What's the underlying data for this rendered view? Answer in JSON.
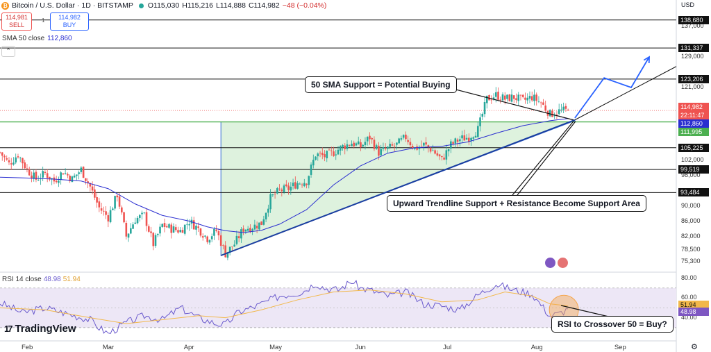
{
  "header": {
    "symbol": "Bitcoin / U.S. Dollar · 1D · BITSTAMP",
    "open": "O115,030",
    "high": "H115,216",
    "low": "L114,888",
    "close": "C114,982",
    "change": "−48 (−0.04%)",
    "logo_glyph": "₿"
  },
  "trade": {
    "sell_price": "114,981",
    "sell_label": "SELL",
    "spread": "1",
    "buy_price": "114,982",
    "buy_label": "BUY"
  },
  "sma_label": {
    "name": "SMA 50 close",
    "value": "112,860"
  },
  "rsi_label": {
    "name": "RSI 14 close",
    "rsi": "48.98",
    "ma": "51.94"
  },
  "brand": {
    "name": "TradingView",
    "mark": "17"
  },
  "currency": "USD",
  "annotations": {
    "sma": "50 SMA Support = Potential Buying",
    "trend": "Upward Trendline Support + Resistance Become Support Area",
    "rsi": "RSI to Crossover 50 = Buy?"
  },
  "price_axis": {
    "ticks": [
      "137,000",
      "129,000",
      "121,000",
      "102,000",
      "98,000",
      "90,000",
      "86,000",
      "82,000",
      "78,500",
      "75,300"
    ],
    "tags": [
      {
        "text": "138,680",
        "style": "black"
      },
      {
        "text": "131,337",
        "style": "black"
      },
      {
        "text": "123,206",
        "style": "black"
      },
      {
        "text": "114,982",
        "style": "red"
      },
      {
        "text": "22:11:47",
        "style": "red"
      },
      {
        "text": "112,860",
        "style": "blue"
      },
      {
        "text": "111,995",
        "style": "green"
      },
      {
        "text": "105,225",
        "style": "black"
      },
      {
        "text": "99,519",
        "style": "black"
      },
      {
        "text": "93,484",
        "style": "black"
      }
    ]
  },
  "rsi_axis": {
    "ticks": [
      "80.00",
      "60.00",
      "40.00"
    ],
    "tags": [
      {
        "text": "51.94",
        "style": "yellow"
      },
      {
        "text": "48.98",
        "style": "purple"
      }
    ]
  },
  "time_axis": [
    "Feb",
    "Mar",
    "Apr",
    "May",
    "Jun",
    "Jul",
    "Aug",
    "Sep"
  ],
  "colors": {
    "up": "#26a69a",
    "down": "#ef5350",
    "sma": "#2a2ed0",
    "trendline": "#1a3ea0",
    "arrow": "#2962ff",
    "triangle_fill": "#d8f0d8",
    "rsi": "#6a5acd",
    "rsi_ma": "#f2b84a",
    "rsi_band": "#ede7f6",
    "highlight": "#f5a64d"
  },
  "chart_data": {
    "type": "candlestick",
    "symbol": "BTCUSD",
    "interval": "1D",
    "price_ylim": [
      73000,
      141000
    ],
    "horizontal_levels": [
      138680,
      131337,
      123206,
      105225,
      99519,
      93484
    ],
    "green_level": 111995,
    "current_price": 114982,
    "sma50_last": 112860,
    "price_path": [
      [
        0,
        104000
      ],
      [
        4,
        101000
      ],
      [
        8,
        103500
      ],
      [
        12,
        99500
      ],
      [
        16,
        97000
      ],
      [
        20,
        98500
      ],
      [
        24,
        96500
      ],
      [
        28,
        99000
      ],
      [
        32,
        97000
      ],
      [
        36,
        99500
      ],
      [
        40,
        95000
      ],
      [
        44,
        89500
      ],
      [
        48,
        87000
      ],
      [
        52,
        93000
      ],
      [
        56,
        82000
      ],
      [
        60,
        86500
      ],
      [
        64,
        87500
      ],
      [
        68,
        80000
      ],
      [
        72,
        85000
      ],
      [
        76,
        84000
      ],
      [
        80,
        83500
      ],
      [
        84,
        86000
      ],
      [
        88,
        84000
      ],
      [
        92,
        81500
      ],
      [
        96,
        83500
      ],
      [
        100,
        77500
      ],
      [
        104,
        80000
      ],
      [
        108,
        84000
      ],
      [
        112,
        84500
      ],
      [
        116,
        85500
      ],
      [
        120,
        92000
      ],
      [
        124,
        94000
      ],
      [
        128,
        94500
      ],
      [
        132,
        96000
      ],
      [
        136,
        96500
      ],
      [
        140,
        103500
      ],
      [
        144,
        103000
      ],
      [
        148,
        104000
      ],
      [
        152,
        105500
      ],
      [
        156,
        106500
      ],
      [
        160,
        105500
      ],
      [
        164,
        108000
      ],
      [
        168,
        104000
      ],
      [
        172,
        105000
      ],
      [
        176,
        106000
      ],
      [
        180,
        108000
      ],
      [
        184,
        105000
      ],
      [
        188,
        106000
      ],
      [
        192,
        104500
      ],
      [
        196,
        102000
      ],
      [
        200,
        106000
      ],
      [
        204,
        107500
      ],
      [
        208,
        108000
      ],
      [
        212,
        110000
      ],
      [
        216,
        118000
      ],
      [
        220,
        119000
      ],
      [
        224,
        118000
      ],
      [
        228,
        118500
      ],
      [
        232,
        117500
      ],
      [
        236,
        118500
      ],
      [
        240,
        117000
      ],
      [
        244,
        114000
      ],
      [
        248,
        114800
      ],
      [
        252,
        114982
      ]
    ],
    "sma50_path": [
      [
        0,
        97500
      ],
      [
        12,
        97300
      ],
      [
        24,
        97000
      ],
      [
        36,
        96500
      ],
      [
        48,
        94500
      ],
      [
        60,
        90500
      ],
      [
        72,
        87500
      ],
      [
        84,
        86000
      ],
      [
        92,
        84500
      ],
      [
        100,
        83500
      ],
      [
        108,
        83000
      ],
      [
        116,
        83600
      ],
      [
        124,
        85200
      ],
      [
        136,
        89000
      ],
      [
        148,
        95500
      ],
      [
        160,
        100500
      ],
      [
        172,
        103800
      ],
      [
        184,
        105200
      ],
      [
        196,
        105600
      ],
      [
        208,
        106800
      ],
      [
        220,
        109000
      ],
      [
        232,
        111000
      ],
      [
        244,
        112300
      ],
      [
        252,
        112860
      ]
    ],
    "trendline": {
      "start": [
        98,
        77000
      ],
      "end": [
        255,
        112500
      ],
      "extend_to": [
        300,
        126500
      ]
    },
    "resistance_line_from": 98,
    "projection": [
      [
        255,
        113000
      ],
      [
        268,
        123500
      ],
      [
        280,
        121000
      ],
      [
        288,
        129000
      ]
    ],
    "triangle": [
      [
        98,
        77000
      ],
      [
        98,
        111995
      ],
      [
        255,
        111995
      ],
      [
        255,
        112300
      ]
    ],
    "rsi": {
      "ylim": [
        18,
        86
      ],
      "band": [
        30,
        70
      ],
      "mid": 50,
      "rsi_path": [
        [
          0,
          55
        ],
        [
          10,
          45
        ],
        [
          20,
          50
        ],
        [
          30,
          44
        ],
        [
          40,
          38
        ],
        [
          44,
          30
        ],
        [
          48,
          24
        ],
        [
          56,
          35
        ],
        [
          64,
          42
        ],
        [
          72,
          38
        ],
        [
          80,
          50
        ],
        [
          88,
          40
        ],
        [
          96,
          34
        ],
        [
          100,
          33
        ],
        [
          106,
          46
        ],
        [
          114,
          52
        ],
        [
          124,
          62
        ],
        [
          134,
          66
        ],
        [
          140,
          75
        ],
        [
          144,
          70
        ],
        [
          150,
          68
        ],
        [
          156,
          77
        ],
        [
          160,
          70
        ],
        [
          164,
          68
        ],
        [
          172,
          62
        ],
        [
          180,
          66
        ],
        [
          188,
          54
        ],
        [
          196,
          52
        ],
        [
          204,
          48
        ],
        [
          212,
          63
        ],
        [
          220,
          74
        ],
        [
          228,
          68
        ],
        [
          236,
          64
        ],
        [
          244,
          42
        ],
        [
          248,
          44
        ],
        [
          252,
          48.98
        ]
      ],
      "ma_path": [
        [
          0,
          50
        ],
        [
          20,
          48
        ],
        [
          40,
          40
        ],
        [
          56,
          34
        ],
        [
          72,
          38
        ],
        [
          88,
          42
        ],
        [
          100,
          40
        ],
        [
          116,
          48
        ],
        [
          132,
          58
        ],
        [
          148,
          66
        ],
        [
          164,
          68
        ],
        [
          180,
          64
        ],
        [
          196,
          56
        ],
        [
          212,
          58
        ],
        [
          224,
          66
        ],
        [
          236,
          62
        ],
        [
          244,
          54
        ],
        [
          252,
          51.94
        ]
      ],
      "last_rsi": 48.98,
      "last_ma": 51.94
    },
    "x_labels": [
      "Feb",
      "Mar",
      "Apr",
      "May",
      "Jun",
      "Jul",
      "Aug",
      "Sep"
    ],
    "x_label_index": [
      12,
      48,
      84,
      122,
      160,
      199,
      238,
      275
    ]
  }
}
